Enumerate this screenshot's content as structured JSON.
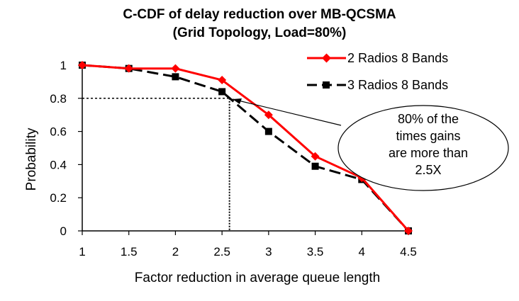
{
  "chart_data": {
    "type": "line",
    "title": "C-CDF of delay reduction over MB-QCSMA",
    "subtitle": "(Grid Topology, Load=80%)",
    "xlabel": "Factor reduction in average queue length",
    "ylabel": "Probability",
    "xlim": [
      1,
      4.5
    ],
    "ylim": [
      0,
      1
    ],
    "x_ticks": [
      "1",
      "1.5",
      "2",
      "2.5",
      "3",
      "3.5",
      "4",
      "4.5"
    ],
    "y_ticks": [
      "0",
      "0.2",
      "0.4",
      "0.6",
      "0.8",
      "1"
    ],
    "grid": false,
    "legend_position": "top-right",
    "series": [
      {
        "name": "2 Radios 8 Bands",
        "color": "#ff0000",
        "marker": "diamond",
        "line_style": "solid",
        "x": [
          1,
          1.5,
          2,
          2.5,
          3,
          3.5,
          4,
          4.5
        ],
        "y": [
          1.0,
          0.98,
          0.98,
          0.91,
          0.7,
          0.45,
          0.32,
          0.0
        ]
      },
      {
        "name": "3 Radios 8 Bands",
        "color": "#000000",
        "marker": "square",
        "line_style": "dashed",
        "x": [
          1,
          1.5,
          2,
          2.5,
          3,
          3.5,
          4,
          4.5
        ],
        "y": [
          1.0,
          0.98,
          0.93,
          0.84,
          0.6,
          0.39,
          0.31,
          0.0
        ]
      }
    ],
    "reference_lines": {
      "horizontal_y": 0.8,
      "vertical_x": 2.58,
      "style": "dotted"
    },
    "annotation": {
      "lines": [
        "80% of the",
        "times gains",
        "are more than",
        "2.5X"
      ],
      "arrow_target": {
        "x": 2.58,
        "y": 0.8
      }
    }
  }
}
